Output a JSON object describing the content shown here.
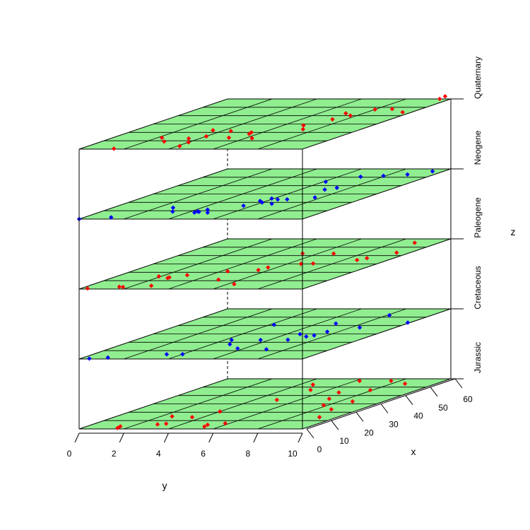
{
  "chart_data": {
    "type": "scatter",
    "projection": "3d",
    "xlabel": "x",
    "ylabel": "y",
    "zlabel": "z",
    "x_ticks": [
      "0",
      "10",
      "20",
      "30",
      "40",
      "50",
      "60"
    ],
    "y_ticks": [
      "0",
      "2",
      "4",
      "6",
      "8",
      "10"
    ],
    "z_ticks": [
      "Jurassic",
      "Cretaceous",
      "Paleogene",
      "Neogene",
      "Quaternary"
    ],
    "xlim": [
      0,
      60
    ],
    "ylim": [
      0,
      10
    ],
    "plane_color": "#90EE90",
    "grid": true,
    "layers": [
      {
        "name": "Jurassic",
        "color": "#FF0000",
        "points": [
          [
            1.1,
            1.6
          ],
          [
            3.1,
            1.5
          ],
          [
            15.0,
            2.5
          ],
          [
            14.1,
            3.5
          ],
          [
            20.8,
            4.0
          ],
          [
            6.7,
            5.8
          ],
          [
            2.8,
            5.3
          ],
          [
            5.0,
            5.2
          ],
          [
            53.0,
            4.6
          ],
          [
            46.6,
            5.2
          ],
          [
            46.4,
            7.9
          ],
          [
            34.8,
            5.0
          ],
          [
            23.4,
            8.7
          ],
          [
            14.1,
            9.2
          ],
          [
            28.4,
            7.8
          ],
          [
            43.6,
            6.8
          ],
          [
            57.4,
            6.2
          ],
          [
            32.9,
            8.6
          ],
          [
            36.1,
            7.2
          ],
          [
            54.1,
            8.6
          ],
          [
            57.5,
            7.6
          ],
          [
            6.3,
            3.2
          ],
          [
            5.5,
            2.9
          ]
        ]
      },
      {
        "name": "Cretaceous",
        "color": "#0000FF",
        "points": [
          [
            0.5,
            0.4
          ],
          [
            1.7,
            1.1
          ],
          [
            5.6,
            3.3
          ],
          [
            5.7,
            4.0
          ],
          [
            17.6,
            4.8
          ],
          [
            22.8,
            4.3
          ],
          [
            42.4,
            6.8
          ],
          [
            52.3,
            8.1
          ],
          [
            40.9,
            4.2
          ],
          [
            32.6,
            7.5
          ],
          [
            37.6,
            8.4
          ],
          [
            43.5,
            9.9
          ],
          [
            23.0,
            6.8
          ],
          [
            11.6,
            7.1
          ],
          [
            29.7,
            6.6
          ],
          [
            26.8,
            7.2
          ],
          [
            12.6,
            5.7
          ],
          [
            22.8,
            5.6
          ],
          [
            28.2,
            7.4
          ]
        ]
      },
      {
        "name": "Paleogene",
        "color": "#FF0000",
        "points": [
          [
            0.7,
            0.3
          ],
          [
            2.4,
            1.7
          ],
          [
            2.7,
            1.5
          ],
          [
            3.9,
            2.8
          ],
          [
            13.9,
            2.5
          ],
          [
            16.6,
            3.0
          ],
          [
            21.2,
            4.3
          ],
          [
            25.8,
            5.6
          ],
          [
            11.2,
            5.0
          ],
          [
            22.8,
            5.5
          ],
          [
            42.4,
            6.7
          ],
          [
            36.9,
            8.8
          ],
          [
            30.5,
            7.1
          ],
          [
            30.1,
            6.6
          ],
          [
            43.5,
            9.4
          ],
          [
            55.3,
            8.9
          ],
          [
            42.5,
            5.3
          ],
          [
            13.2,
            2.5
          ],
          [
            15.1,
            1.9
          ],
          [
            34.7,
            8.6
          ],
          [
            5.8,
            6.3
          ]
        ]
      },
      {
        "name": "Neogene",
        "color": "#0000FF",
        "points": [
          [
            0.0,
            0.0
          ],
          [
            2.1,
            1.2
          ],
          [
            8.9,
            3.2
          ],
          [
            19.8,
            6.0
          ],
          [
            11.3,
            4.5
          ],
          [
            15.9,
            5.6
          ],
          [
            23.4,
            6.3
          ],
          [
            23.6,
            6.7
          ],
          [
            21.7,
            5.7
          ],
          [
            24.6,
            5.9
          ],
          [
            57.1,
            9.5
          ],
          [
            51.7,
            7.9
          ],
          [
            44.6,
            6.1
          ],
          [
            13.6,
            2.7
          ],
          [
            25.8,
            7.7
          ],
          [
            7.8,
            4.3
          ],
          [
            8.7,
            4.4
          ],
          [
            18.3,
            6.6
          ],
          [
            37.4,
            7.4
          ],
          [
            35.2,
            7.1
          ],
          [
            53.3,
            8.8
          ],
          [
            7.7,
            4.9
          ],
          [
            9.1,
            4.3
          ],
          [
            50.6,
            7.0
          ]
        ]
      },
      {
        "name": "Quaternary",
        "color": "#FF0000",
        "points": [
          [
            0.5,
            1.5
          ],
          [
            13.6,
            2.2
          ],
          [
            21.6,
            4.4
          ],
          [
            15.3,
            4.0
          ],
          [
            3.6,
            4.1
          ],
          [
            8.1,
            4.0
          ],
          [
            18.2,
            5.6
          ],
          [
            13.6,
            5.2
          ],
          [
            13.0,
            6.3
          ],
          [
            28.4,
            6.9
          ],
          [
            40.1,
            7.7
          ],
          [
            42.8,
            7.2
          ],
          [
            44.1,
            9.6
          ],
          [
            60.0,
            9.5
          ],
          [
            23.7,
            7.4
          ],
          [
            35.6,
            7.4
          ],
          [
            20.0,
            5.5
          ],
          [
            47.4,
            8.0
          ],
          [
            63.1,
            9.4
          ],
          [
            9.1,
            2.8
          ],
          [
            12.7,
            3.5
          ],
          [
            22.5,
            3.5
          ],
          [
            48.0,
            8.7
          ]
        ]
      }
    ]
  }
}
